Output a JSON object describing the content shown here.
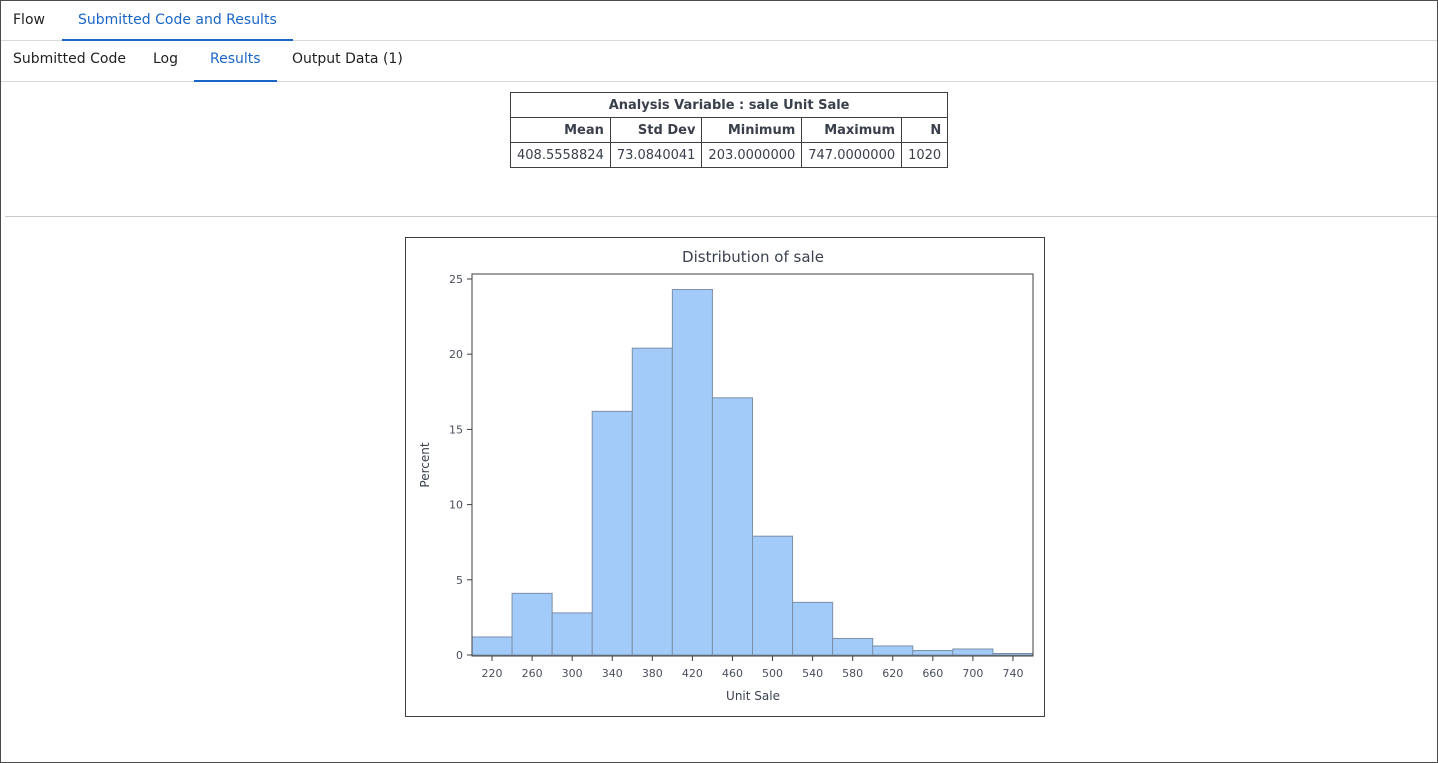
{
  "top_tabs": {
    "flow": "Flow",
    "submitted_code_and_results": "Submitted Code and Results"
  },
  "sub_tabs": {
    "submitted_code": "Submitted Code",
    "log": "Log",
    "results": "Results",
    "output_data": "Output Data (1)"
  },
  "stats_table": {
    "caption": "Analysis Variable : sale Unit Sale",
    "headers": [
      "Mean",
      "Std Dev",
      "Minimum",
      "Maximum",
      "N"
    ],
    "values": [
      "408.5558824",
      "73.0840041",
      "203.0000000",
      "747.0000000",
      "1020"
    ]
  },
  "chart_data": {
    "type": "bar",
    "title": "Distribution of sale",
    "xlabel": "Unit Sale",
    "ylabel": "Percent",
    "bin_width": 40,
    "x": [
      220,
      260,
      300,
      340,
      380,
      420,
      460,
      500,
      540,
      580,
      620,
      660,
      700,
      740
    ],
    "values": [
      1.2,
      4.1,
      2.8,
      16.2,
      20.4,
      24.3,
      17.1,
      7.9,
      3.5,
      1.1,
      0.6,
      0.3,
      0.4,
      0.1
    ],
    "ylim": [
      0,
      25
    ],
    "xlim": [
      200,
      760
    ],
    "yticks": [
      0,
      5,
      10,
      15,
      20,
      25
    ],
    "xticks": [
      220,
      260,
      300,
      340,
      380,
      420,
      460,
      500,
      540,
      580,
      620,
      660,
      700,
      740
    ],
    "grid": false,
    "bar_color": "#a3cbfa",
    "bar_edge_color": "#7a8fa8"
  }
}
